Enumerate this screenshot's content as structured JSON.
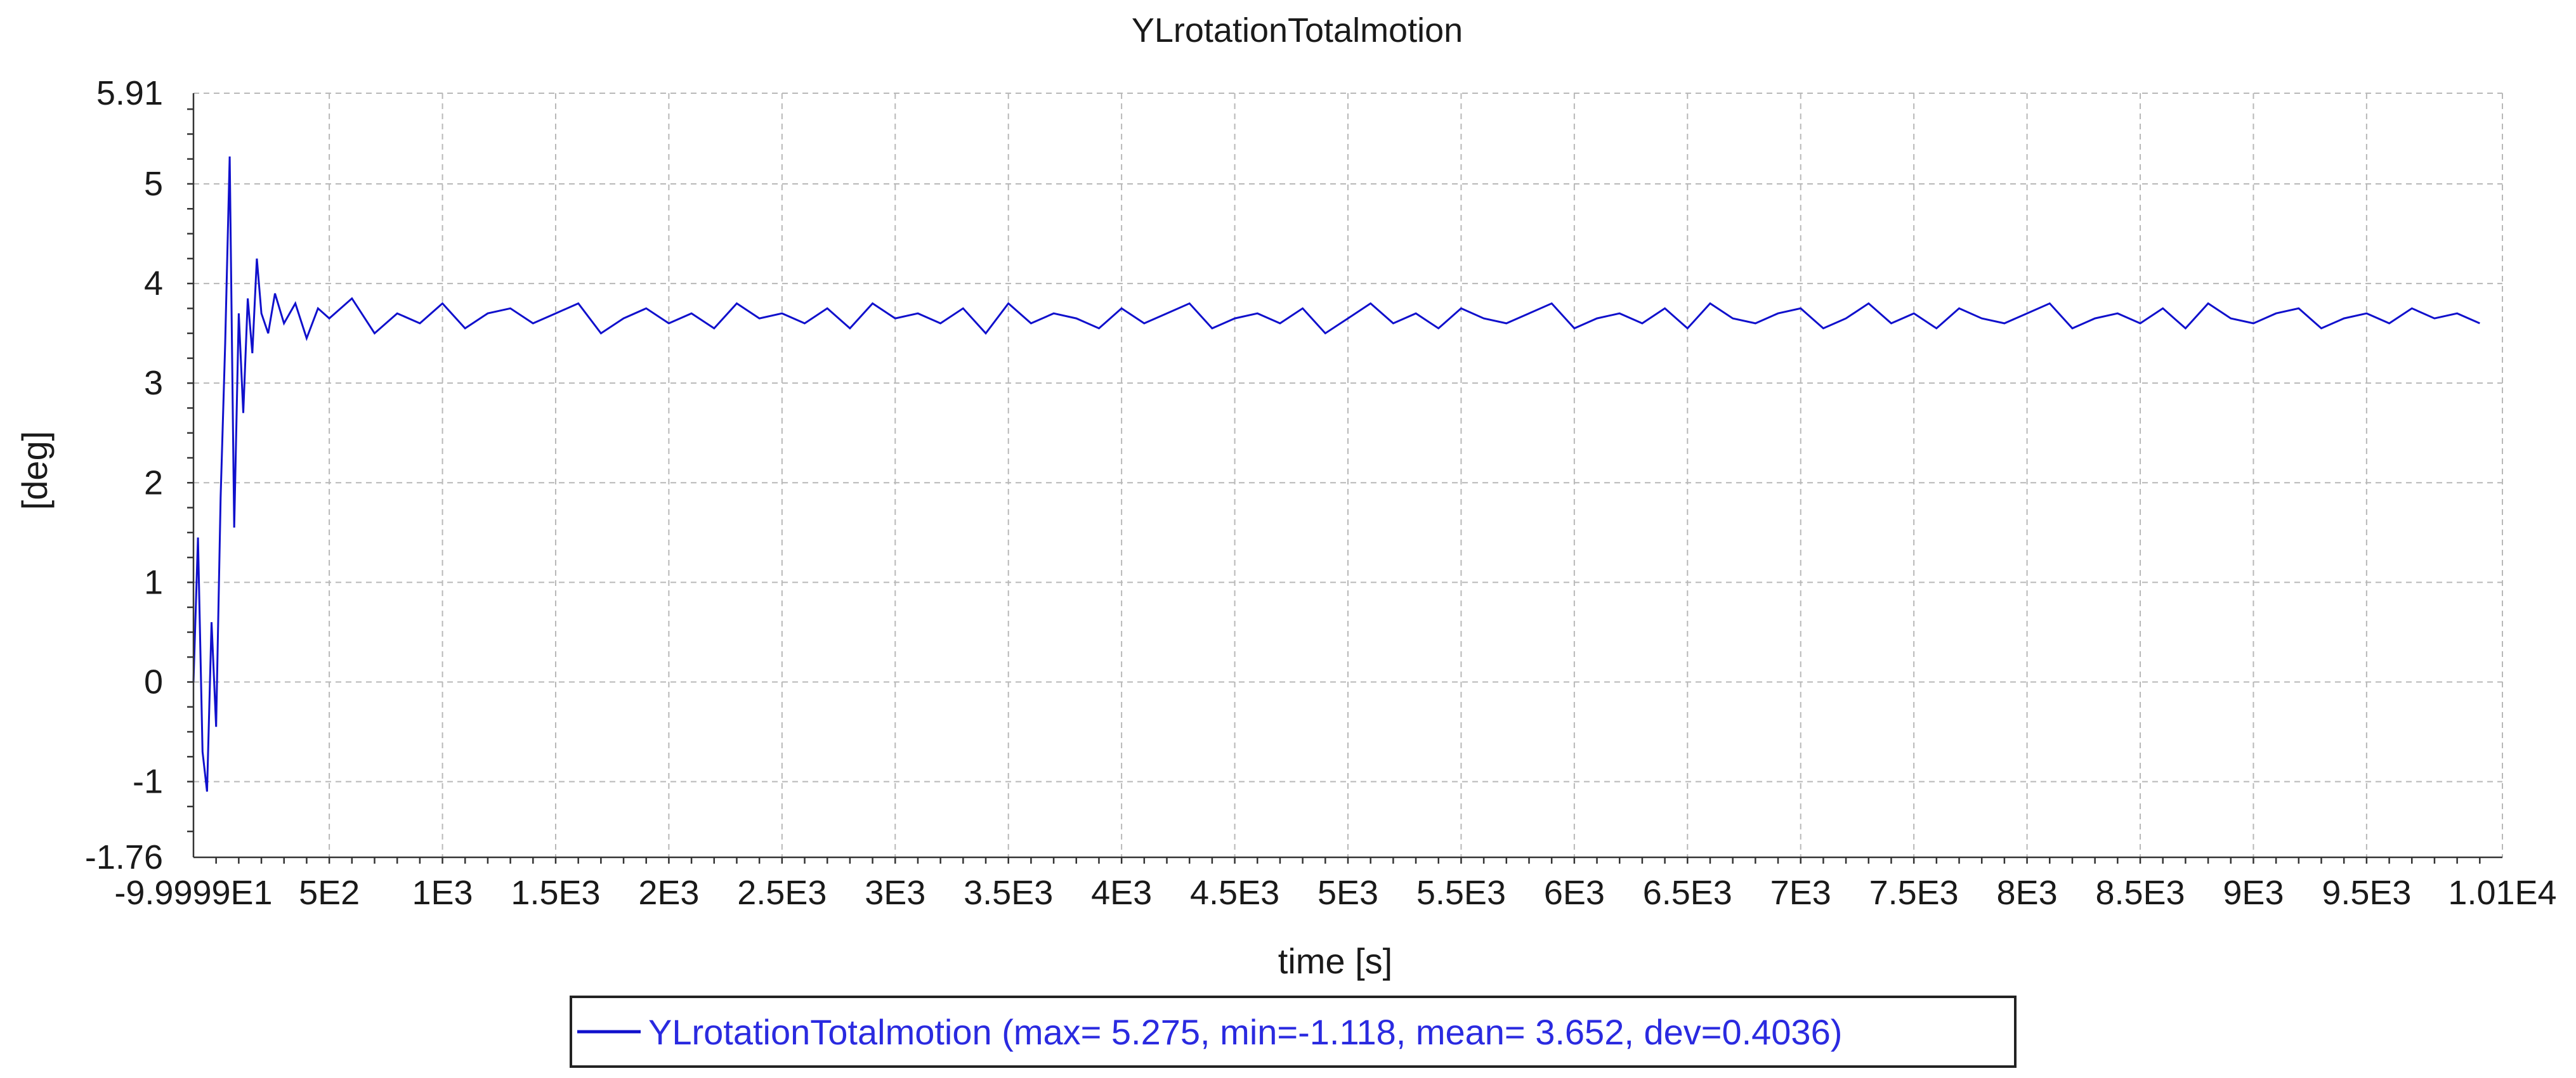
{
  "chart_data": {
    "type": "line",
    "title": "YLrotationTotalmotion",
    "xlabel": "time [s]",
    "ylabel": "[deg]",
    "xlim": [
      -99.999,
      10100
    ],
    "ylim": [
      -1.76,
      5.91
    ],
    "grid": true,
    "x_ticks": [
      {
        "value": -99.999,
        "label": "-9.9999E1"
      },
      {
        "value": 500,
        "label": "5E2"
      },
      {
        "value": 1000,
        "label": "1E3"
      },
      {
        "value": 1500,
        "label": "1.5E3"
      },
      {
        "value": 2000,
        "label": "2E3"
      },
      {
        "value": 2500,
        "label": "2.5E3"
      },
      {
        "value": 3000,
        "label": "3E3"
      },
      {
        "value": 3500,
        "label": "3.5E3"
      },
      {
        "value": 4000,
        "label": "4E3"
      },
      {
        "value": 4500,
        "label": "4.5E3"
      },
      {
        "value": 5000,
        "label": "5E3"
      },
      {
        "value": 5500,
        "label": "5.5E3"
      },
      {
        "value": 6000,
        "label": "6E3"
      },
      {
        "value": 6500,
        "label": "6.5E3"
      },
      {
        "value": 7000,
        "label": "7E3"
      },
      {
        "value": 7500,
        "label": "7.5E3"
      },
      {
        "value": 8000,
        "label": "8E3"
      },
      {
        "value": 8500,
        "label": "8.5E3"
      },
      {
        "value": 9000,
        "label": "9E3"
      },
      {
        "value": 9500,
        "label": "9.5E3"
      },
      {
        "value": 10100,
        "label": "1.01E4"
      }
    ],
    "y_ticks": [
      {
        "value": -1.76,
        "label": "-1.76"
      },
      {
        "value": -1,
        "label": "-1"
      },
      {
        "value": 0,
        "label": "0"
      },
      {
        "value": 1,
        "label": "1"
      },
      {
        "value": 2,
        "label": "2"
      },
      {
        "value": 3,
        "label": "3"
      },
      {
        "value": 4,
        "label": "4"
      },
      {
        "value": 5,
        "label": "5"
      },
      {
        "value": 5.91,
        "label": "5.91"
      }
    ],
    "series": [
      {
        "name": "YLrotationTotalmotion",
        "color": "#1010cc",
        "stats": {
          "max": 5.275,
          "min": -1.118,
          "mean": 3.652,
          "dev": 0.4036
        },
        "legend_label": "YLrotationTotalmotion (max= 5.275, min=-1.118, mean= 3.652, dev=0.4036)",
        "x": [
          -100,
          -80,
          -60,
          -40,
          -20,
          0,
          20,
          40,
          60,
          80,
          100,
          120,
          140,
          160,
          180,
          200,
          230,
          260,
          300,
          350,
          400,
          450,
          500,
          600,
          700,
          800,
          900,
          1000,
          1100,
          1200,
          1300,
          1400,
          1500,
          1600,
          1700,
          1800,
          1900,
          2000,
          2100,
          2200,
          2300,
          2400,
          2500,
          2600,
          2700,
          2800,
          2900,
          3000,
          3100,
          3200,
          3300,
          3400,
          3500,
          3600,
          3700,
          3800,
          3900,
          4000,
          4100,
          4200,
          4300,
          4400,
          4500,
          4600,
          4700,
          4800,
          4900,
          5000,
          5100,
          5200,
          5300,
          5400,
          5500,
          5600,
          5700,
          5800,
          5900,
          6000,
          6100,
          6200,
          6300,
          6400,
          6500,
          6600,
          6700,
          6800,
          6900,
          7000,
          7100,
          7200,
          7300,
          7400,
          7500,
          7600,
          7700,
          7800,
          7900,
          8000,
          8100,
          8200,
          8300,
          8400,
          8500,
          8600,
          8700,
          8800,
          8900,
          9000,
          9100,
          9200,
          9300,
          9400,
          9500,
          9600,
          9700,
          9800,
          9900,
          10000
        ],
        "y": [
          0.0,
          1.45,
          -0.7,
          -1.1,
          0.6,
          -0.45,
          1.85,
          3.4,
          5.275,
          1.55,
          3.7,
          2.7,
          3.85,
          3.3,
          4.25,
          3.7,
          3.5,
          3.9,
          3.6,
          3.8,
          3.45,
          3.75,
          3.65,
          3.85,
          3.5,
          3.7,
          3.6,
          3.8,
          3.55,
          3.7,
          3.75,
          3.6,
          3.7,
          3.8,
          3.5,
          3.65,
          3.75,
          3.6,
          3.7,
          3.55,
          3.8,
          3.65,
          3.7,
          3.6,
          3.75,
          3.55,
          3.8,
          3.65,
          3.7,
          3.6,
          3.75,
          3.5,
          3.8,
          3.6,
          3.7,
          3.65,
          3.55,
          3.75,
          3.6,
          3.7,
          3.8,
          3.55,
          3.65,
          3.7,
          3.6,
          3.75,
          3.5,
          3.65,
          3.8,
          3.6,
          3.7,
          3.55,
          3.75,
          3.65,
          3.6,
          3.7,
          3.8,
          3.55,
          3.65,
          3.7,
          3.6,
          3.75,
          3.55,
          3.8,
          3.65,
          3.6,
          3.7,
          3.75,
          3.55,
          3.65,
          3.8,
          3.6,
          3.7,
          3.55,
          3.75,
          3.65,
          3.6,
          3.7,
          3.8,
          3.55,
          3.65,
          3.7,
          3.6,
          3.75,
          3.55,
          3.8,
          3.65,
          3.6,
          3.7,
          3.75,
          3.55,
          3.65,
          3.7,
          3.6,
          3.75,
          3.65,
          3.7,
          3.6
        ]
      }
    ],
    "legend": "bottom-center"
  }
}
